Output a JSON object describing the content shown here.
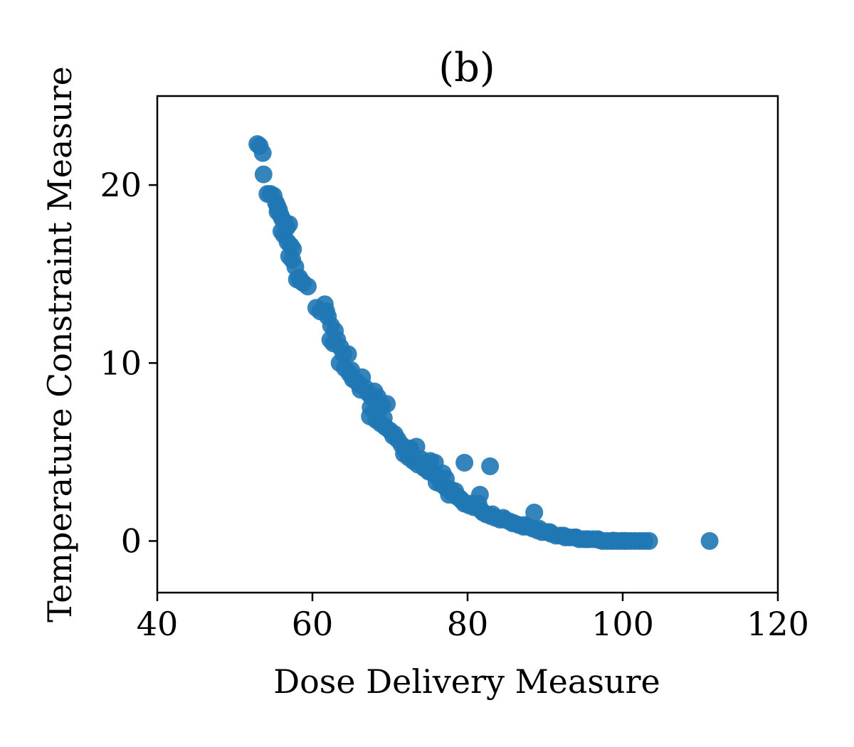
{
  "chart_data": {
    "type": "scatter",
    "title": "(b)",
    "xlabel": "Dose Delivery Measure",
    "ylabel": "Temperature Constraint Measure",
    "xlim": [
      40,
      120
    ],
    "ylim": [
      -2.9,
      25
    ],
    "xticks": [
      40,
      60,
      80,
      100,
      120
    ],
    "yticks": [
      0,
      10,
      20
    ],
    "grid": false,
    "color": "#1f77b4",
    "series": [
      {
        "points": [
          [
            52.9,
            22.3
          ],
          [
            53.2,
            22.2
          ],
          [
            53.6,
            21.8
          ],
          [
            53.7,
            20.6
          ],
          [
            54.2,
            19.5
          ],
          [
            54.6,
            19.5
          ],
          [
            55.0,
            19.4
          ],
          [
            55.3,
            19.0
          ],
          [
            55.5,
            18.8
          ],
          [
            55.7,
            18.6
          ],
          [
            55.9,
            18.3
          ],
          [
            56.1,
            18.1
          ],
          [
            56.4,
            17.9
          ],
          [
            56.7,
            17.6
          ],
          [
            57.0,
            17.8
          ],
          [
            56.0,
            17.4
          ],
          [
            56.3,
            17.2
          ],
          [
            56.8,
            16.8
          ],
          [
            57.2,
            16.6
          ],
          [
            57.5,
            16.4
          ],
          [
            57.0,
            16.0
          ],
          [
            57.4,
            15.8
          ],
          [
            57.8,
            15.4
          ],
          [
            58.3,
            14.8
          ],
          [
            58.0,
            14.7
          ],
          [
            58.8,
            14.5
          ],
          [
            59.4,
            14.3
          ],
          [
            60.5,
            13.1
          ],
          [
            61.0,
            12.9
          ],
          [
            61.6,
            13.3
          ],
          [
            62.0,
            12.6
          ],
          [
            62.4,
            12.1
          ],
          [
            62.9,
            11.8
          ],
          [
            62.3,
            11.3
          ],
          [
            62.7,
            11.1
          ],
          [
            63.2,
            11.3
          ],
          [
            63.6,
            10.9
          ],
          [
            64.0,
            10.5
          ],
          [
            64.6,
            10.5
          ],
          [
            63.5,
            10.0
          ],
          [
            64.2,
            9.7
          ],
          [
            64.8,
            9.4
          ],
          [
            65.2,
            9.1
          ],
          [
            65.6,
            9.0
          ],
          [
            66.0,
            8.8
          ],
          [
            66.4,
            9.2
          ],
          [
            66.8,
            8.6
          ],
          [
            67.2,
            8.3
          ],
          [
            67.6,
            8.1
          ],
          [
            68.0,
            8.4
          ],
          [
            68.4,
            8.1
          ],
          [
            67.5,
            7.5
          ],
          [
            68.0,
            7.3
          ],
          [
            68.6,
            7.4
          ],
          [
            69.0,
            7.6
          ],
          [
            69.6,
            7.7
          ],
          [
            67.4,
            7.0
          ],
          [
            68.2,
            6.8
          ],
          [
            68.8,
            6.6
          ],
          [
            69.4,
            6.4
          ],
          [
            70.0,
            6.2
          ],
          [
            70.6,
            6.0
          ],
          [
            71.0,
            5.7
          ],
          [
            71.5,
            5.4
          ],
          [
            72.0,
            5.1
          ],
          [
            72.6,
            5.2
          ],
          [
            73.4,
            5.3
          ],
          [
            71.8,
            4.9
          ],
          [
            72.4,
            4.7
          ],
          [
            73.0,
            4.5
          ],
          [
            73.6,
            4.3
          ],
          [
            74.0,
            4.6
          ],
          [
            74.6,
            4.4
          ],
          [
            75.2,
            4.5
          ],
          [
            75.8,
            4.4
          ],
          [
            74.4,
            4.1
          ],
          [
            75.0,
            3.9
          ],
          [
            75.6,
            3.8
          ],
          [
            76.2,
            3.6
          ],
          [
            76.8,
            3.8
          ],
          [
            77.2,
            3.5
          ],
          [
            76.0,
            3.3
          ],
          [
            76.6,
            3.2
          ],
          [
            77.2,
            3.0
          ],
          [
            77.8,
            2.9
          ],
          [
            78.4,
            2.8
          ],
          [
            77.6,
            2.6
          ],
          [
            78.6,
            2.5
          ],
          [
            79.2,
            2.3
          ],
          [
            79.6,
            2.1
          ],
          [
            80.2,
            2.0
          ],
          [
            80.8,
            1.9
          ],
          [
            81.4,
            2.1
          ],
          [
            81.8,
            1.7
          ],
          [
            82.4,
            1.5
          ],
          [
            83.0,
            1.4
          ],
          [
            83.6,
            1.3
          ],
          [
            84.2,
            1.2
          ],
          [
            84.8,
            1.2
          ],
          [
            85.4,
            1.1
          ],
          [
            86.0,
            1.0
          ],
          [
            86.6,
            0.9
          ],
          [
            87.2,
            0.8
          ],
          [
            87.8,
            0.8
          ],
          [
            88.4,
            0.7
          ],
          [
            89.0,
            0.6
          ],
          [
            89.6,
            0.5
          ],
          [
            90.2,
            0.5
          ],
          [
            90.8,
            0.4
          ],
          [
            91.4,
            0.3
          ],
          [
            92.0,
            0.3
          ],
          [
            92.6,
            0.2
          ],
          [
            93.2,
            0.2
          ],
          [
            93.8,
            0.2
          ],
          [
            94.4,
            0.1
          ],
          [
            95.0,
            0.1
          ],
          [
            95.6,
            0.1
          ],
          [
            96.2,
            0.1
          ],
          [
            96.8,
            0.1
          ],
          [
            97.4,
            0.0
          ],
          [
            98.0,
            0.0
          ],
          [
            98.6,
            0.0
          ],
          [
            99.2,
            0.0
          ],
          [
            99.8,
            0.0
          ],
          [
            100.4,
            0.0
          ],
          [
            101.0,
            0.0
          ],
          [
            101.6,
            0.0
          ],
          [
            102.2,
            0.0
          ],
          [
            102.8,
            0.0
          ],
          [
            103.4,
            0.0
          ],
          [
            79.6,
            4.4
          ],
          [
            82.9,
            4.2
          ],
          [
            81.6,
            2.6
          ],
          [
            88.6,
            1.6
          ],
          [
            111.2,
            0.0
          ],
          [
            55.5,
            18.5
          ],
          [
            58.5,
            14.6
          ],
          [
            61.8,
            12.9
          ],
          [
            65.0,
            9.6
          ],
          [
            66.2,
            8.5
          ],
          [
            69.2,
            6.9
          ],
          [
            70.4,
            5.9
          ],
          [
            72.8,
            4.9
          ],
          [
            74.8,
            4.0
          ],
          [
            76.4,
            3.5
          ],
          [
            78.0,
            2.7
          ],
          [
            79.0,
            2.4
          ],
          [
            80.4,
            2.1
          ],
          [
            82.0,
            1.6
          ],
          [
            83.2,
            1.5
          ],
          [
            84.6,
            1.3
          ],
          [
            85.8,
            1.0
          ],
          [
            87.4,
            0.9
          ],
          [
            89.2,
            0.7
          ],
          [
            90.6,
            0.5
          ],
          [
            92.4,
            0.3
          ],
          [
            94.0,
            0.2
          ],
          [
            95.4,
            0.1
          ],
          [
            97.0,
            0.05
          ],
          [
            98.8,
            0.02
          ],
          [
            100.2,
            0.01
          ]
        ]
      }
    ]
  }
}
